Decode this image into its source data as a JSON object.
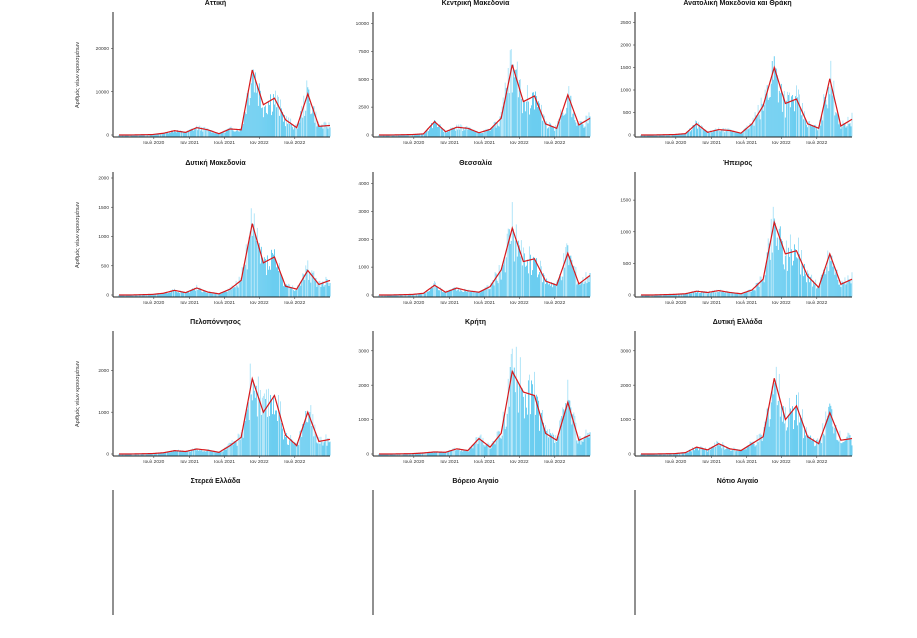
{
  "figure": {
    "ylabel": "Αριθμός νέων κρουσμάτων",
    "colors": {
      "bars": "#5bc8ef",
      "bars_peak": "#a8e2f7",
      "average": "#d7191c",
      "axis": "#222222"
    }
  },
  "chart_data": [
    {
      "type": "bar",
      "title": "Αττική",
      "show_ylabel": true,
      "x_ticks": [
        "Ιουλ 2020",
        "Ιαν 2021",
        "Ιουλ 2021",
        "Ιαν 2022",
        "Ιουλ 2022"
      ],
      "y_ticks": [
        "0",
        "10000",
        "20000"
      ],
      "ylim": [
        0,
        27000
      ],
      "series": [
        {
          "x": [
            "Ιαν 2020",
            "Μαρ 2020",
            "Μάι 2020",
            "Ιουλ 2020",
            "Σεπ 2020",
            "Νοε 2020",
            "Ιαν 2021",
            "Μαρ 2021",
            "Μάι 2021",
            "Ιουλ 2021",
            "Σεπ 2021",
            "Νοε 2021",
            "Ιαν 2022",
            "Φεβ 2022",
            "Μαρ 2022",
            "Μάι 2022",
            "Ιουλ 2022",
            "Αυγ 2022",
            "Οκτ 2022",
            "Δεκ 2022"
          ],
          "values": [
            0,
            0,
            50,
            100,
            400,
            1000,
            600,
            1700,
            1200,
            300,
            1400,
            1200,
            15000,
            7000,
            8500,
            3500,
            1700,
            9500,
            2000,
            2200
          ]
        }
      ]
    },
    {
      "type": "bar",
      "title": "Κεντρική Μακεδονία",
      "show_ylabel": false,
      "x_ticks": [
        "Ιουλ 2020",
        "Ιαν 2021",
        "Ιουλ 2021",
        "Ιαν 2022",
        "Ιουλ 2022"
      ],
      "y_ticks": [
        "0",
        "2500",
        "5000",
        "7500",
        "10000"
      ],
      "ylim": [
        0,
        10500
      ],
      "series": [
        {
          "x": [
            "Ιαν 2020",
            "Μαρ 2020",
            "Μάι 2020",
            "Ιουλ 2020",
            "Σεπ 2020",
            "Νοε 2020",
            "Ιαν 2021",
            "Μαρ 2021",
            "Μάι 2021",
            "Ιουλ 2021",
            "Σεπ 2021",
            "Νοε 2021",
            "Ιαν 2022",
            "Φεβ 2022",
            "Μαρ 2022",
            "Μάι 2022",
            "Ιουλ 2022",
            "Αυγ 2022",
            "Οκτ 2022",
            "Δεκ 2022"
          ],
          "values": [
            0,
            0,
            20,
            40,
            100,
            1200,
            300,
            700,
            600,
            200,
            500,
            1500,
            6300,
            3000,
            3500,
            1000,
            600,
            3600,
            900,
            1500
          ]
        }
      ]
    },
    {
      "type": "bar",
      "title": "Ανατολική Μακεδονία και Θράκη",
      "show_ylabel": false,
      "x_ticks": [
        "Ιουλ 2020",
        "Ιαν 2021",
        "Ιουλ 2021",
        "Ιαν 2022",
        "Ιουλ 2022"
      ],
      "y_ticks": [
        "0",
        "500",
        "1000",
        "1500",
        "2000",
        "2500"
      ],
      "ylim": [
        0,
        2600
      ],
      "series": [
        {
          "x": [
            "Ιαν 2020",
            "Μαρ 2020",
            "Μάι 2020",
            "Ιουλ 2020",
            "Σεπ 2020",
            "Νοε 2020",
            "Ιαν 2021",
            "Μαρ 2021",
            "Μάι 2021",
            "Ιουλ 2021",
            "Σεπ 2021",
            "Νοε 2021",
            "Ιαν 2022",
            "Φεβ 2022",
            "Μαρ 2022",
            "Μάι 2022",
            "Ιουλ 2022",
            "Αυγ 2022",
            "Οκτ 2022",
            "Δεκ 2022"
          ],
          "values": [
            0,
            0,
            5,
            10,
            30,
            250,
            60,
            120,
            100,
            40,
            250,
            650,
            1500,
            700,
            800,
            250,
            150,
            1250,
            200,
            350
          ]
        }
      ]
    },
    {
      "type": "bar",
      "title": "Δυτική Μακεδονία",
      "show_ylabel": true,
      "x_ticks": [
        "Ιουλ 2020",
        "Ιαν 2021",
        "Ιουλ 2021",
        "Ιαν 2022",
        "Ιουλ 2022"
      ],
      "y_ticks": [
        "0",
        "500",
        "1000",
        "1500",
        "2000"
      ],
      "ylim": [
        0,
        2000
      ],
      "series": [
        {
          "x": [
            "Ιαν 2020",
            "Μαρ 2020",
            "Μάι 2020",
            "Ιουλ 2020",
            "Σεπ 2020",
            "Νοε 2020",
            "Ιαν 2021",
            "Μαρ 2021",
            "Μάι 2021",
            "Ιουλ 2021",
            "Σεπ 2021",
            "Νοε 2021",
            "Ιαν 2022",
            "Φεβ 2022",
            "Μαρ 2022",
            "Μάι 2022",
            "Ιουλ 2022",
            "Αυγ 2022",
            "Οκτ 2022",
            "Δεκ 2022"
          ],
          "values": [
            0,
            0,
            5,
            10,
            30,
            80,
            40,
            120,
            50,
            20,
            100,
            250,
            1220,
            550,
            650,
            150,
            100,
            420,
            180,
            250
          ]
        }
      ]
    },
    {
      "type": "bar",
      "title": "Θεσσαλία",
      "show_ylabel": false,
      "x_ticks": [
        "Ιουλ 2020",
        "Ιαν 2021",
        "Ιουλ 2021",
        "Ιαν 2022",
        "Ιουλ 2022"
      ],
      "y_ticks": [
        "0",
        "1000",
        "2000",
        "3000",
        "4000"
      ],
      "ylim": [
        0,
        4200
      ],
      "series": [
        {
          "x": [
            "Ιαν 2020",
            "Μαρ 2020",
            "Μάι 2020",
            "Ιουλ 2020",
            "Σεπ 2020",
            "Νοε 2020",
            "Ιαν 2021",
            "Μαρ 2021",
            "Μάι 2021",
            "Ιουλ 2021",
            "Σεπ 2021",
            "Νοε 2021",
            "Ιαν 2022",
            "Φεβ 2022",
            "Μαρ 2022",
            "Μάι 2022",
            "Ιουλ 2022",
            "Αυγ 2022",
            "Οκτ 2022",
            "Δεκ 2022"
          ],
          "values": [
            0,
            0,
            10,
            20,
            60,
            350,
            100,
            250,
            150,
            100,
            300,
            900,
            2400,
            1200,
            1300,
            500,
            350,
            1500,
            400,
            700
          ]
        }
      ]
    },
    {
      "type": "bar",
      "title": "Ήπειρος",
      "show_ylabel": false,
      "x_ticks": [
        "Ιουλ 2020",
        "Ιαν 2021",
        "Ιουλ 2021",
        "Ιαν 2022",
        "Ιουλ 2022"
      ],
      "y_ticks": [
        "0",
        "500",
        "1000",
        "1500"
      ],
      "ylim": [
        0,
        1850
      ],
      "series": [
        {
          "x": [
            "Ιαν 2020",
            "Μαρ 2020",
            "Μάι 2020",
            "Ιουλ 2020",
            "Σεπ 2020",
            "Νοε 2020",
            "Ιαν 2021",
            "Μαρ 2021",
            "Μάι 2021",
            "Ιουλ 2021",
            "Σεπ 2021",
            "Νοε 2021",
            "Ιαν 2022",
            "Φεβ 2022",
            "Μαρ 2022",
            "Μάι 2022",
            "Ιουλ 2022",
            "Αυγ 2022",
            "Οκτ 2022",
            "Δεκ 2022"
          ],
          "values": [
            0,
            0,
            5,
            10,
            20,
            60,
            40,
            70,
            40,
            20,
            80,
            250,
            1150,
            650,
            700,
            300,
            120,
            650,
            170,
            250
          ]
        }
      ]
    },
    {
      "type": "bar",
      "title": "Πελοπόννησος",
      "show_ylabel": true,
      "x_ticks": [
        "Ιουλ 2020",
        "Ιαν 2021",
        "Ιουλ 2021",
        "Ιαν 2022",
        "Ιουλ 2022"
      ],
      "y_ticks": [
        "0",
        "1000",
        "2000"
      ],
      "ylim": [
        0,
        2800
      ],
      "series": [
        {
          "x": [
            "Ιαν 2020",
            "Μαρ 2020",
            "Μάι 2020",
            "Ιουλ 2020",
            "Σεπ 2020",
            "Νοε 2020",
            "Ιαν 2021",
            "Μαρ 2021",
            "Μάι 2021",
            "Ιουλ 2021",
            "Σεπ 2021",
            "Νοε 2021",
            "Ιαν 2022",
            "Φεβ 2022",
            "Μαρ 2022",
            "Μάι 2022",
            "Ιουλ 2022",
            "Αυγ 2022",
            "Οκτ 2022",
            "Δεκ 2022"
          ],
          "values": [
            0,
            0,
            5,
            10,
            30,
            80,
            60,
            120,
            90,
            40,
            200,
            400,
            1800,
            1000,
            1400,
            450,
            200,
            1000,
            300,
            350
          ]
        }
      ]
    },
    {
      "type": "bar",
      "title": "Κρήτη",
      "show_ylabel": false,
      "x_ticks": [
        "Ιουλ 2020",
        "Ιαν 2021",
        "Ιουλ 2021",
        "Ιαν 2022",
        "Ιουλ 2022"
      ],
      "y_ticks": [
        "0",
        "1000",
        "2000",
        "3000"
      ],
      "ylim": [
        0,
        3400
      ],
      "series": [
        {
          "x": [
            "Ιαν 2020",
            "Μαρ 2020",
            "Μάι 2020",
            "Ιουλ 2020",
            "Σεπ 2020",
            "Νοε 2020",
            "Ιαν 2021",
            "Μαρ 2021",
            "Μάι 2021",
            "Ιουλ 2021",
            "Σεπ 2021",
            "Νοε 2021",
            "Ιαν 2022",
            "Φεβ 2022",
            "Μαρ 2022",
            "Μάι 2022",
            "Ιουλ 2022",
            "Αυγ 2022",
            "Οκτ 2022",
            "Δεκ 2022"
          ],
          "values": [
            0,
            0,
            5,
            10,
            30,
            60,
            50,
            150,
            100,
            450,
            200,
            600,
            2400,
            1800,
            1700,
            600,
            400,
            1500,
            400,
            550
          ]
        }
      ]
    },
    {
      "type": "bar",
      "title": "Δυτική Ελλάδα",
      "show_ylabel": false,
      "x_ticks": [
        "Ιουλ 2020",
        "Ιαν 2021",
        "Ιουλ 2021",
        "Ιαν 2022",
        "Ιουλ 2022"
      ],
      "y_ticks": [
        "0",
        "1000",
        "2000",
        "3000"
      ],
      "ylim": [
        0,
        3400
      ],
      "series": [
        {
          "x": [
            "Ιαν 2020",
            "Μαρ 2020",
            "Μάι 2020",
            "Ιουλ 2020",
            "Σεπ 2020",
            "Νοε 2020",
            "Ιαν 2021",
            "Μαρ 2021",
            "Μάι 2021",
            "Ιουλ 2021",
            "Σεπ 2021",
            "Νοε 2021",
            "Ιαν 2022",
            "Φεβ 2022",
            "Μαρ 2022",
            "Μάι 2022",
            "Ιουλ 2022",
            "Αυγ 2022",
            "Οκτ 2022",
            "Δεκ 2022"
          ],
          "values": [
            0,
            0,
            5,
            10,
            40,
            200,
            120,
            300,
            150,
            100,
            300,
            500,
            2200,
            1000,
            1400,
            500,
            300,
            1200,
            400,
            450
          ]
        }
      ]
    },
    {
      "type": "bar",
      "title": "Στερεά Ελλάδα",
      "show_ylabel": false,
      "x_ticks": [],
      "y_ticks": [],
      "ylim": [
        0,
        1
      ],
      "series": []
    },
    {
      "type": "bar",
      "title": "Βόρειο Αιγαίο",
      "show_ylabel": false,
      "x_ticks": [],
      "y_ticks": [],
      "ylim": [
        0,
        1
      ],
      "series": []
    },
    {
      "type": "bar",
      "title": "Νότιο Αιγαίο",
      "show_ylabel": false,
      "x_ticks": [],
      "y_ticks": [],
      "ylim": [
        0,
        1
      ],
      "series": []
    }
  ]
}
